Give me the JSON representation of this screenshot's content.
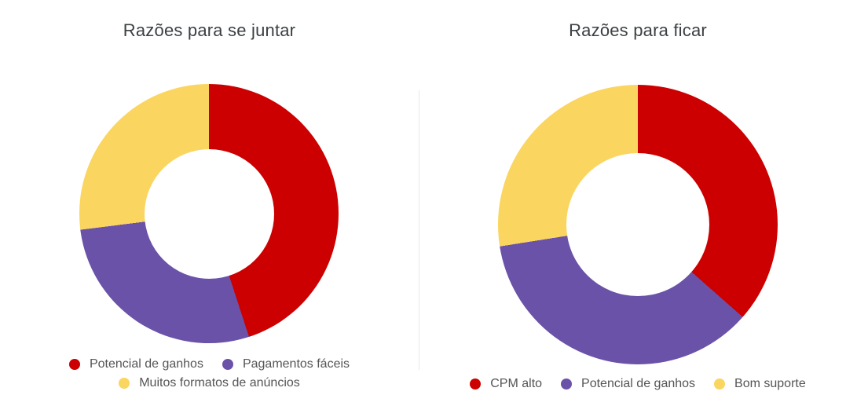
{
  "chart_data": [
    {
      "type": "pie",
      "subtype": "donut",
      "title": "Razões para se juntar",
      "labels": [
        "Potencial de ganhos",
        "Pagamentos fáceis",
        "Muitos formatos de anúncios"
      ],
      "values": [
        45,
        28,
        27
      ],
      "colors": [
        "#cc0000",
        "#6a52a8",
        "#fad55f"
      ],
      "hole_ratio": 0.5,
      "start_angle_deg": 0,
      "direction": "clockwise",
      "legend_position": "bottom",
      "data_labels_shown": false
    },
    {
      "type": "pie",
      "subtype": "donut",
      "title": "Razões para ficar",
      "labels": [
        "CPM alto",
        "Potencial de ganhos",
        "Bom suporte"
      ],
      "values": [
        36.5,
        36,
        27.5
      ],
      "colors": [
        "#cc0000",
        "#6a52a8",
        "#fad55f"
      ],
      "hole_ratio": 0.51,
      "start_angle_deg": 0,
      "direction": "clockwise",
      "legend_position": "bottom",
      "data_labels_shown": false
    }
  ]
}
